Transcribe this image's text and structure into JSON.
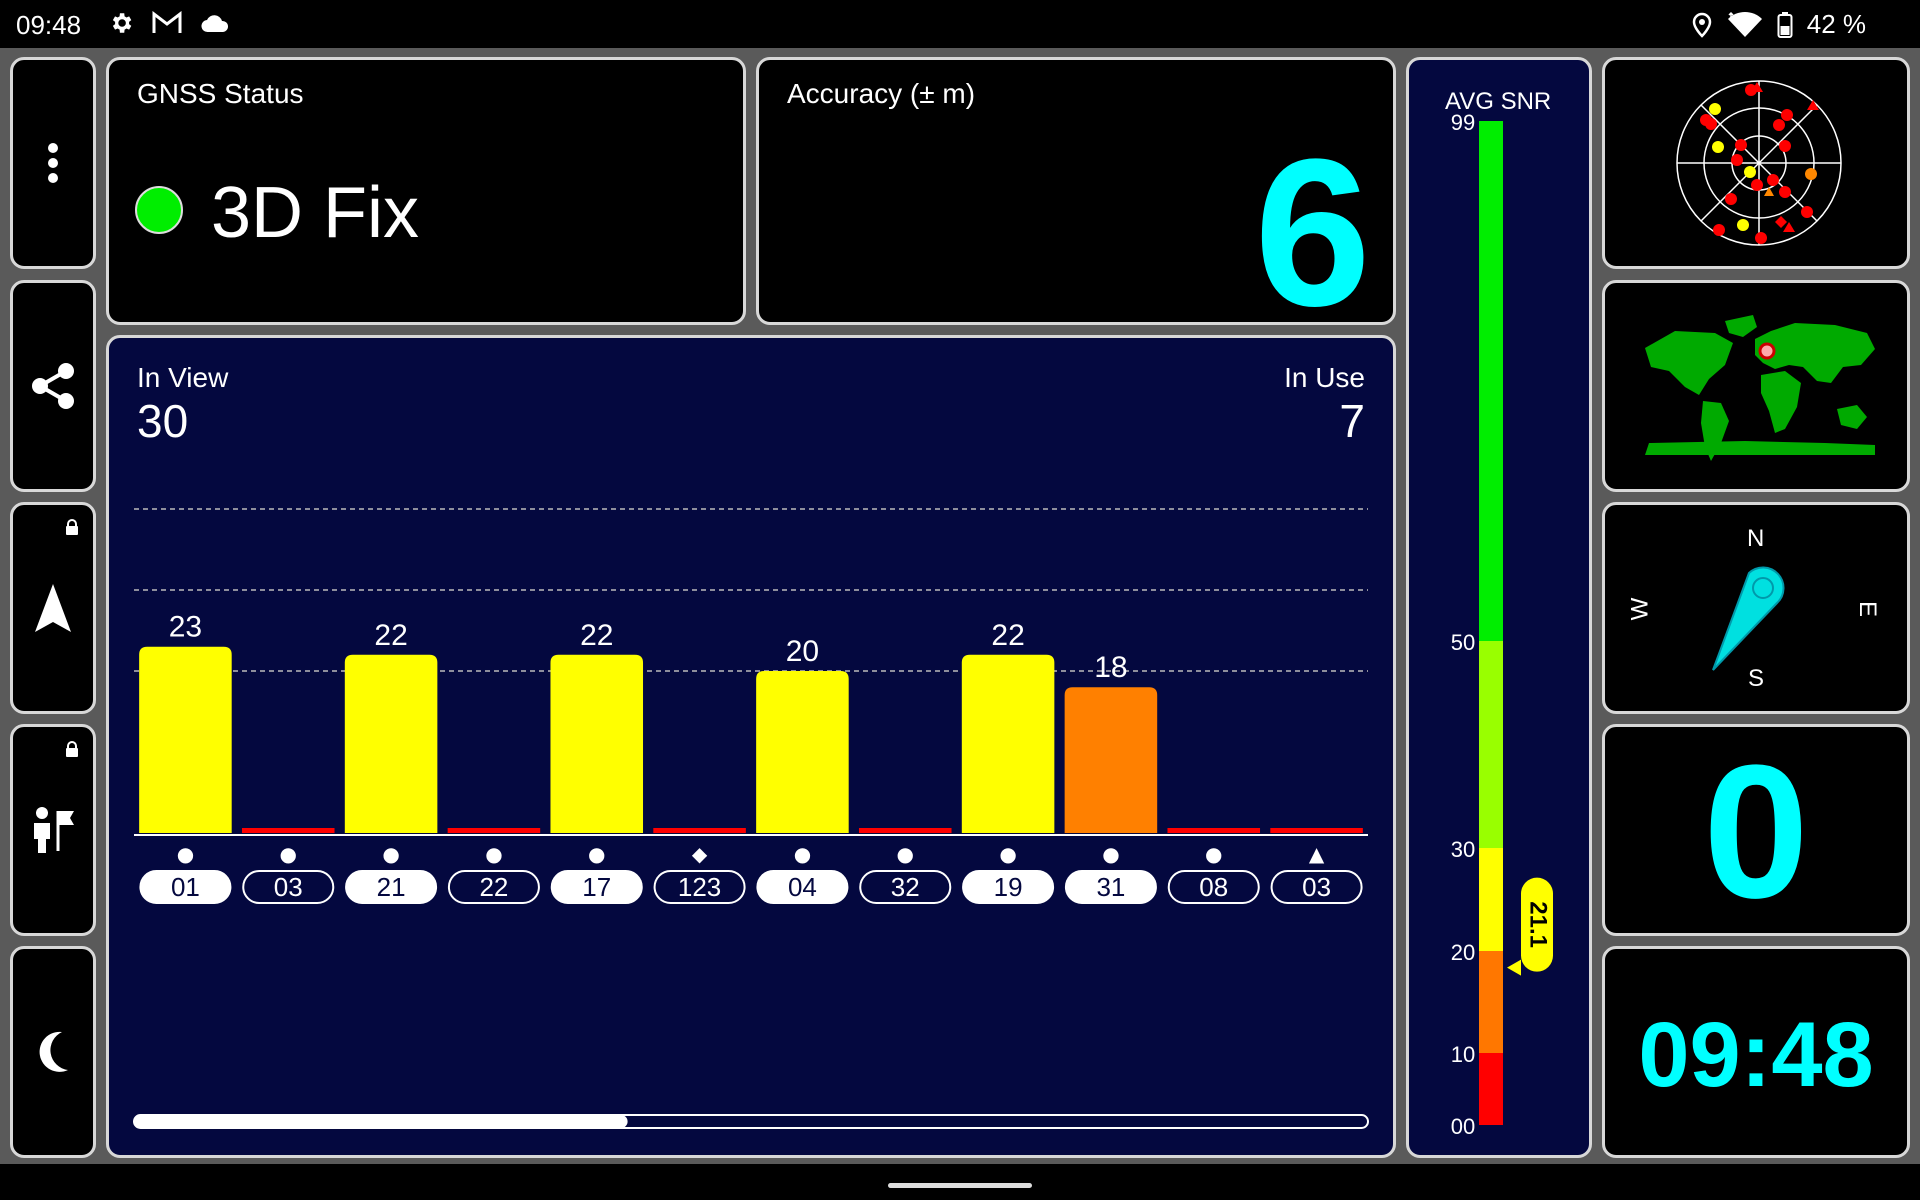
{
  "status_bar": {
    "time": "09:48",
    "icons": [
      "gear-icon",
      "gmail-icon",
      "cloud-icon"
    ],
    "right_icons": [
      "location-pin-icon",
      "wifi-icon",
      "battery-icon"
    ],
    "battery": "42 %"
  },
  "sidebar": {
    "items": [
      {
        "name": "more-menu",
        "icon": "more-vert-icon"
      },
      {
        "name": "share",
        "icon": "share-icon"
      },
      {
        "name": "navigate",
        "icon": "navigation-arrow-icon",
        "locked": true
      },
      {
        "name": "waypoint",
        "icon": "person-flag-icon",
        "locked": true
      },
      {
        "name": "night-mode",
        "icon": "moon-icon"
      }
    ]
  },
  "gnss": {
    "title": "GNSS Status",
    "fix": "3D Fix",
    "fix_color": "#00ee00"
  },
  "accuracy": {
    "title": "Accuracy (± m)",
    "value": "6"
  },
  "satellites": {
    "in_view_label": "In View",
    "in_view": "30",
    "in_use_label": "In Use",
    "in_use": "7"
  },
  "chart_data": {
    "type": "bar",
    "categories": [
      "01",
      "03",
      "21",
      "22",
      "17",
      "123",
      "04",
      "32",
      "19",
      "31",
      "08",
      "03"
    ],
    "constellation_symbols": [
      "●",
      "●",
      "●",
      "●",
      "●",
      "◆",
      "●",
      "●",
      "●",
      "●",
      "●",
      "▲"
    ],
    "values": [
      23,
      0,
      22,
      0,
      22,
      0,
      20,
      0,
      22,
      18,
      0,
      0
    ],
    "data_labels": [
      "23",
      "",
      "22",
      "",
      "22",
      "",
      "20",
      "",
      "22",
      "18",
      "",
      ""
    ],
    "in_use": [
      true,
      false,
      true,
      false,
      true,
      false,
      true,
      false,
      true,
      true,
      false,
      false
    ],
    "colors": [
      "#ffff00",
      "#ff0000",
      "#ffff00",
      "#ff0000",
      "#ffff00",
      "#ff0000",
      "#ffff00",
      "#ff0000",
      "#ffff00",
      "#ff8000",
      "#ff0000",
      "#ff0000"
    ],
    "ylim": [
      0,
      50
    ],
    "gridlines": [
      20,
      30,
      40
    ],
    "scroll_fraction": 0.4
  },
  "snr": {
    "title": "AVG SNR",
    "ticks": [
      "99",
      "50",
      "30",
      "20",
      "10",
      "00"
    ],
    "avg": "21.1",
    "avg_value": 21.1,
    "bands": [
      {
        "from": 0,
        "to": 10,
        "color": "#ff0000"
      },
      {
        "from": 10,
        "to": 20,
        "color": "#ff7700"
      },
      {
        "from": 20,
        "to": 30,
        "color": "#ffff00"
      },
      {
        "from": 30,
        "to": 50,
        "color": "#99ff00"
      },
      {
        "from": 50,
        "to": 99,
        "color": "#00ee00"
      }
    ]
  },
  "compass": {
    "n": "N",
    "s": "S",
    "e": "E",
    "w": "W"
  },
  "speed": {
    "value": "0"
  },
  "clock": {
    "value": "09:48"
  }
}
